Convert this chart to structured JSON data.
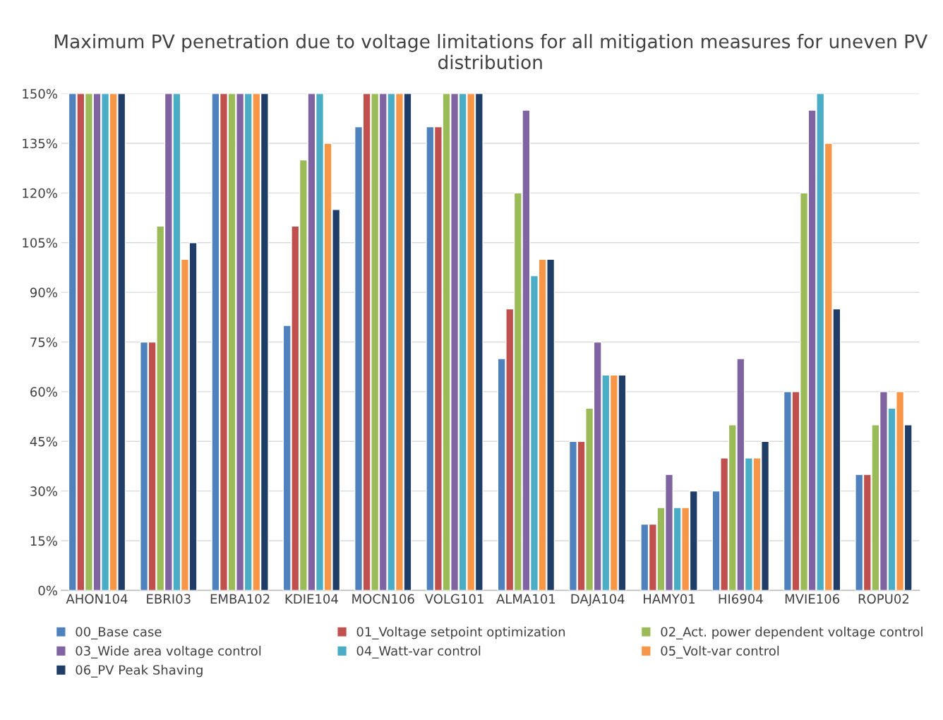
{
  "chart_data": {
    "type": "bar",
    "title": "Maximum PV penetration due to voltage limitations for all mitigation measures for uneven PV distribution",
    "categories": [
      "AHON104",
      "EBRI03",
      "EMBA102",
      "KDIE104",
      "MOCN106",
      "VOLG101",
      "ALMA101",
      "DAJA104",
      "HAMY01",
      "HI6904",
      "MVIE106",
      "ROPU02"
    ],
    "series": [
      {
        "name": "00_Base case",
        "color": "#4f81bd",
        "values": [
          150,
          75,
          150,
          80,
          140,
          140,
          70,
          45,
          20,
          30,
          60,
          35
        ]
      },
      {
        "name": "01_Voltage setpoint optimization",
        "color": "#c0504d",
        "values": [
          150,
          75,
          150,
          110,
          150,
          140,
          85,
          45,
          20,
          40,
          60,
          35
        ]
      },
      {
        "name": "02_Act. power dependent voltage control",
        "color": "#9bbb59",
        "values": [
          150,
          110,
          150,
          130,
          150,
          150,
          120,
          55,
          25,
          50,
          120,
          50
        ]
      },
      {
        "name": "03_Wide area voltage control",
        "color": "#8064a2",
        "values": [
          150,
          150,
          150,
          150,
          150,
          150,
          145,
          75,
          35,
          70,
          145,
          60
        ]
      },
      {
        "name": "04_Watt-var control",
        "color": "#4bacc6",
        "values": [
          150,
          150,
          150,
          150,
          150,
          150,
          95,
          65,
          25,
          40,
          150,
          55
        ]
      },
      {
        "name": "05_Volt-var control",
        "color": "#f79646",
        "values": [
          150,
          100,
          150,
          135,
          150,
          150,
          100,
          65,
          25,
          40,
          135,
          60
        ]
      },
      {
        "name": "06_PV Peak Shaving",
        "color": "#1f3d66",
        "values": [
          150,
          105,
          150,
          115,
          150,
          150,
          100,
          65,
          30,
          45,
          85,
          50
        ]
      }
    ],
    "ylim": [
      0,
      150
    ],
    "yticks": [
      {
        "value": 0,
        "label": "0%"
      },
      {
        "value": 15,
        "label": "15%"
      },
      {
        "value": 30,
        "label": "30%"
      },
      {
        "value": 45,
        "label": "45%"
      },
      {
        "value": 60,
        "label": "60%"
      },
      {
        "value": 75,
        "label": "75%"
      },
      {
        "value": 90,
        "label": "90%"
      },
      {
        "value": 105,
        "label": "105%"
      },
      {
        "value": 120,
        "label": "120%"
      },
      {
        "value": 135,
        "label": "135%"
      },
      {
        "value": 150,
        "label": "150%"
      }
    ],
    "grid": "y",
    "legend": "bottom"
  }
}
